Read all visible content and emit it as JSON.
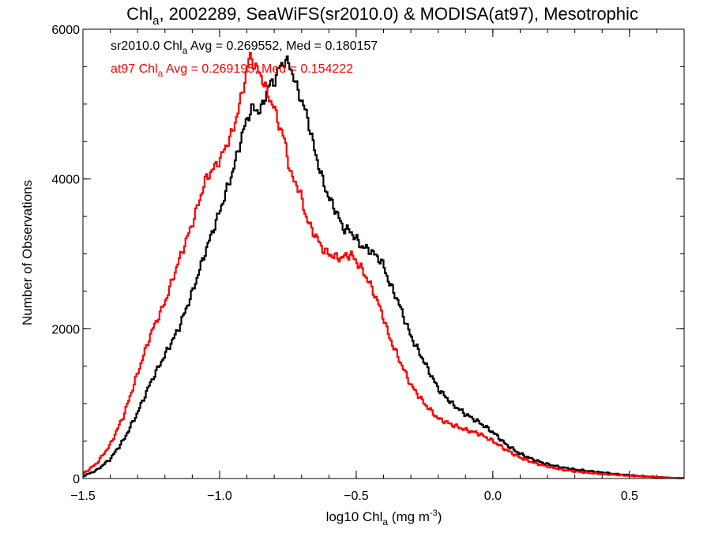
{
  "chart_data": {
    "type": "line",
    "title": {
      "prefix": "Chl",
      "sub": "a",
      "suffix": ", 2002289, SeaWiFS(sr2010.0) & MODISA(at97), Mesotrophic"
    },
    "xlabel": {
      "prefix": "log10 Chl",
      "sub": "a",
      "suffix": " (mg m",
      "sup": "-3",
      "end": ")"
    },
    "ylabel": "Number of Observations",
    "xlim": [
      -1.5,
      0.7
    ],
    "ylim": [
      0,
      6000
    ],
    "x_ticks": [
      -1.5,
      -1.0,
      -0.5,
      0.0,
      0.5
    ],
    "x_tick_labels": [
      "−1.5",
      "−1.0",
      "−0.5",
      "0.0",
      "0.5"
    ],
    "y_ticks": [
      0,
      2000,
      4000,
      6000
    ],
    "y_tick_labels": [
      "0",
      "2000",
      "4000",
      "6000"
    ],
    "annotations": [
      {
        "prefix": "sr2010.0 Chl",
        "sub": "a",
        "suffix": " Avg = 0.269552, Med = 0.180157",
        "color": "#000000"
      },
      {
        "prefix": "at97 Chl",
        "sub": "a",
        "suffix": " Avg = 0.269195, Med = 0.154222",
        "color": "#ff0000"
      }
    ],
    "grid": false,
    "series": [
      {
        "color": "#000000",
        "points": [
          [
            -1.5,
            30
          ],
          [
            -1.45,
            110
          ],
          [
            -1.4,
            260
          ],
          [
            -1.35,
            520
          ],
          [
            -1.3,
            880
          ],
          [
            -1.25,
            1300
          ],
          [
            -1.2,
            1650
          ],
          [
            -1.15,
            2000
          ],
          [
            -1.1,
            2480
          ],
          [
            -1.05,
            3050
          ],
          [
            -1.0,
            3560
          ],
          [
            -0.95,
            4120
          ],
          [
            -0.92,
            4550
          ],
          [
            -0.9,
            4800
          ],
          [
            -0.88,
            4950
          ],
          [
            -0.85,
            4900
          ],
          [
            -0.82,
            5250
          ],
          [
            -0.8,
            5300
          ],
          [
            -0.78,
            5500
          ],
          [
            -0.76,
            5580
          ],
          [
            -0.74,
            5500
          ],
          [
            -0.72,
            5250
          ],
          [
            -0.7,
            5050
          ],
          [
            -0.68,
            4850
          ],
          [
            -0.65,
            4350
          ],
          [
            -0.62,
            3950
          ],
          [
            -0.6,
            3750
          ],
          [
            -0.57,
            3550
          ],
          [
            -0.55,
            3350
          ],
          [
            -0.52,
            3300
          ],
          [
            -0.5,
            3200
          ],
          [
            -0.48,
            3100
          ],
          [
            -0.45,
            3050
          ],
          [
            -0.42,
            2950
          ],
          [
            -0.4,
            2850
          ],
          [
            -0.38,
            2620
          ],
          [
            -0.35,
            2400
          ],
          [
            -0.3,
            1900
          ],
          [
            -0.25,
            1550
          ],
          [
            -0.2,
            1200
          ],
          [
            -0.15,
            1000
          ],
          [
            -0.1,
            860
          ],
          [
            -0.05,
            750
          ],
          [
            0.0,
            620
          ],
          [
            0.05,
            450
          ],
          [
            0.1,
            330
          ],
          [
            0.15,
            250
          ],
          [
            0.2,
            190
          ],
          [
            0.25,
            150
          ],
          [
            0.3,
            120
          ],
          [
            0.35,
            100
          ],
          [
            0.4,
            80
          ],
          [
            0.45,
            60
          ],
          [
            0.5,
            45
          ],
          [
            0.55,
            30
          ],
          [
            0.6,
            20
          ],
          [
            0.65,
            10
          ],
          [
            0.7,
            5
          ]
        ]
      },
      {
        "color": "#ff0000",
        "points": [
          [
            -1.5,
            60
          ],
          [
            -1.45,
            200
          ],
          [
            -1.4,
            450
          ],
          [
            -1.35,
            850
          ],
          [
            -1.3,
            1400
          ],
          [
            -1.25,
            1950
          ],
          [
            -1.2,
            2350
          ],
          [
            -1.15,
            2900
          ],
          [
            -1.1,
            3400
          ],
          [
            -1.05,
            4000
          ],
          [
            -1.0,
            4250
          ],
          [
            -0.95,
            4650
          ],
          [
            -0.92,
            5100
          ],
          [
            -0.9,
            5450
          ],
          [
            -0.89,
            5650
          ],
          [
            -0.87,
            5500
          ],
          [
            -0.85,
            5400
          ],
          [
            -0.82,
            5100
          ],
          [
            -0.8,
            4950
          ],
          [
            -0.78,
            4700
          ],
          [
            -0.76,
            4500
          ],
          [
            -0.74,
            4050
          ],
          [
            -0.72,
            3950
          ],
          [
            -0.7,
            3750
          ],
          [
            -0.68,
            3450
          ],
          [
            -0.65,
            3250
          ],
          [
            -0.62,
            3050
          ],
          [
            -0.6,
            3000
          ],
          [
            -0.57,
            2950
          ],
          [
            -0.55,
            2950
          ],
          [
            -0.52,
            3000
          ],
          [
            -0.5,
            2900
          ],
          [
            -0.48,
            2800
          ],
          [
            -0.45,
            2600
          ],
          [
            -0.42,
            2350
          ],
          [
            -0.4,
            2150
          ],
          [
            -0.38,
            1900
          ],
          [
            -0.35,
            1650
          ],
          [
            -0.3,
            1250
          ],
          [
            -0.25,
            1000
          ],
          [
            -0.2,
            800
          ],
          [
            -0.15,
            720
          ],
          [
            -0.1,
            650
          ],
          [
            -0.05,
            600
          ],
          [
            0.0,
            500
          ],
          [
            0.05,
            380
          ],
          [
            0.1,
            280
          ],
          [
            0.15,
            210
          ],
          [
            0.2,
            160
          ],
          [
            0.25,
            120
          ],
          [
            0.3,
            95
          ],
          [
            0.35,
            75
          ],
          [
            0.4,
            60
          ],
          [
            0.45,
            48
          ],
          [
            0.5,
            36
          ],
          [
            0.55,
            28
          ],
          [
            0.6,
            18
          ],
          [
            0.65,
            10
          ],
          [
            0.7,
            5
          ]
        ]
      }
    ]
  }
}
